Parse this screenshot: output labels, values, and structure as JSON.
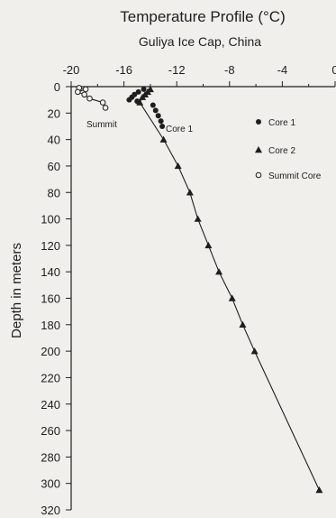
{
  "chart_data": {
    "type": "scatter",
    "title": "Temperature Profile (°C)",
    "subtitle": "Guliya Ice Cap, China",
    "xlabel": "",
    "ylabel": "Depth in meters",
    "xlim": [
      -20,
      0
    ],
    "ylim": [
      320,
      0
    ],
    "x_ticks": [
      "-20",
      "-16",
      "-12",
      "-8",
      "-4",
      "0"
    ],
    "y_ticks": [
      "0",
      "20",
      "40",
      "60",
      "80",
      "100",
      "120",
      "140",
      "160",
      "180",
      "200",
      "220",
      "240",
      "260",
      "280",
      "300",
      "320"
    ],
    "grid": false,
    "legend_position": "right",
    "annotations": [
      "Summit",
      "Core 1"
    ],
    "series": [
      {
        "name": "Core 1",
        "marker": "filled-circle",
        "connected": false,
        "points": [
          {
            "x": -14.5,
            "y": 2
          },
          {
            "x": -14.9,
            "y": 4
          },
          {
            "x": -15.2,
            "y": 6
          },
          {
            "x": -15.4,
            "y": 8
          },
          {
            "x": -15.6,
            "y": 10
          },
          {
            "x": -15.0,
            "y": 11
          },
          {
            "x": -13.8,
            "y": 14
          },
          {
            "x": -13.6,
            "y": 18
          },
          {
            "x": -13.4,
            "y": 22
          },
          {
            "x": -13.2,
            "y": 26
          },
          {
            "x": -13.1,
            "y": 30
          }
        ]
      },
      {
        "name": "Core 2",
        "marker": "filled-triangle",
        "connected": true,
        "points": [
          {
            "x": -14.0,
            "y": 2
          },
          {
            "x": -14.2,
            "y": 4
          },
          {
            "x": -14.4,
            "y": 6
          },
          {
            "x": -14.6,
            "y": 8
          },
          {
            "x": -14.8,
            "y": 12
          },
          {
            "x": -13.0,
            "y": 40
          },
          {
            "x": -11.9,
            "y": 60
          },
          {
            "x": -11.0,
            "y": 80
          },
          {
            "x": -10.4,
            "y": 100
          },
          {
            "x": -9.6,
            "y": 120
          },
          {
            "x": -8.8,
            "y": 140
          },
          {
            "x": -7.8,
            "y": 160
          },
          {
            "x": -7.0,
            "y": 180
          },
          {
            "x": -6.1,
            "y": 200
          },
          {
            "x": -1.2,
            "y": 305
          }
        ]
      },
      {
        "name": "Summit Core",
        "marker": "open-circle",
        "connected": true,
        "points": [
          {
            "x": -19.4,
            "y": 1
          },
          {
            "x": -18.9,
            "y": 2
          },
          {
            "x": -19.5,
            "y": 4
          },
          {
            "x": -19.0,
            "y": 6
          },
          {
            "x": -18.6,
            "y": 9
          },
          {
            "x": -17.6,
            "y": 12
          },
          {
            "x": -17.4,
            "y": 16
          }
        ]
      }
    ]
  }
}
